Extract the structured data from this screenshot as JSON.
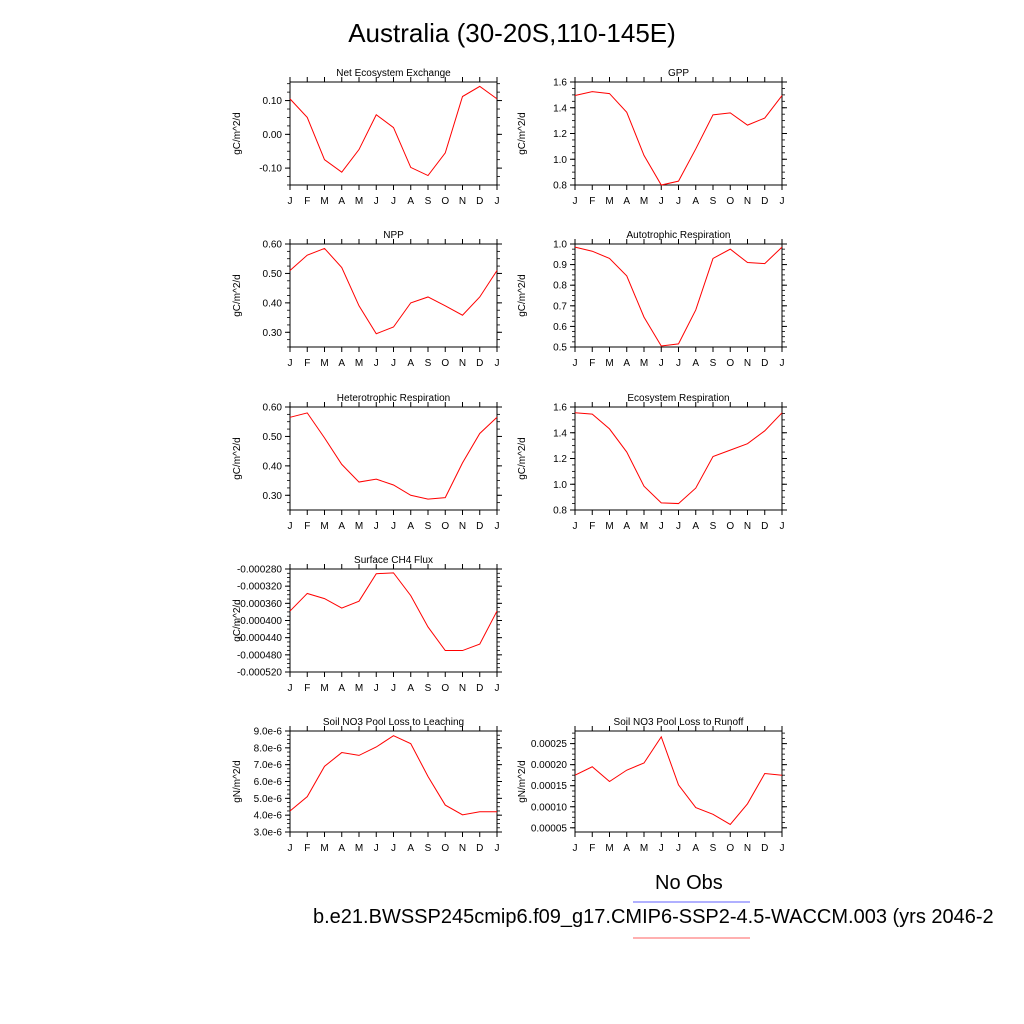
{
  "title": "Australia (30-20S,110-145E)",
  "legend": {
    "obs_label": "No Obs",
    "obs_color": "#8080ff",
    "case_label": "b.e21.BWSSP245cmip6.f09_g17.CMIP6-SSP2-4.5-WACCM.003 (yrs 2046-2",
    "case_color": "#ff8080"
  },
  "series_color": "#ff0000",
  "months": [
    "J",
    "F",
    "M",
    "A",
    "M",
    "J",
    "J",
    "A",
    "S",
    "O",
    "N",
    "D",
    "J"
  ],
  "chart_data": [
    {
      "type": "line",
      "title": "Net Ecosystem Exchange",
      "ylabel": "gC/m^2/d",
      "ylim": [
        -0.15,
        0.155
      ],
      "yticks": [
        -0.1,
        0.0,
        0.1
      ],
      "yticklabels": [
        "-0.10",
        "0.00",
        "0.10"
      ],
      "x": [
        "J",
        "F",
        "M",
        "A",
        "M",
        "J",
        "J",
        "A",
        "S",
        "O",
        "N",
        "D",
        "J"
      ],
      "values": [
        0.105,
        0.05,
        -0.075,
        -0.112,
        -0.045,
        0.058,
        0.02,
        -0.098,
        -0.122,
        -0.055,
        0.112,
        0.142,
        0.105
      ]
    },
    {
      "type": "line",
      "title": "GPP",
      "ylabel": "gC/m^2/d",
      "ylim": [
        0.8,
        1.6
      ],
      "yticks": [
        0.8,
        1.0,
        1.2,
        1.4,
        1.6
      ],
      "yticklabels": [
        "0.8",
        "1.0",
        "1.2",
        "1.4",
        "1.6"
      ],
      "x": [
        "J",
        "F",
        "M",
        "A",
        "M",
        "J",
        "J",
        "A",
        "S",
        "O",
        "N",
        "D",
        "J"
      ],
      "values": [
        1.495,
        1.525,
        1.51,
        1.365,
        1.03,
        0.8,
        0.83,
        1.08,
        1.345,
        1.36,
        1.265,
        1.32,
        1.495
      ]
    },
    {
      "type": "line",
      "title": "NPP",
      "ylabel": "gC/m^2/d",
      "ylim": [
        0.25,
        0.6
      ],
      "yticks": [
        0.3,
        0.4,
        0.5,
        0.6
      ],
      "yticklabels": [
        "0.30",
        "0.40",
        "0.50",
        "0.60"
      ],
      "x": [
        "J",
        "F",
        "M",
        "A",
        "M",
        "J",
        "J",
        "A",
        "S",
        "O",
        "N",
        "D",
        "J"
      ],
      "values": [
        0.51,
        0.562,
        0.585,
        0.52,
        0.39,
        0.295,
        0.318,
        0.4,
        0.42,
        0.39,
        0.358,
        0.42,
        0.51
      ]
    },
    {
      "type": "line",
      "title": "Autotrophic Respiration",
      "ylabel": "gC/m^2/d",
      "ylim": [
        0.5,
        1.0
      ],
      "yticks": [
        0.5,
        0.6,
        0.7,
        0.8,
        0.9,
        1.0
      ],
      "yticklabels": [
        "0.5",
        "0.6",
        "0.7",
        "0.8",
        "0.9",
        "1.0"
      ],
      "x": [
        "J",
        "F",
        "M",
        "A",
        "M",
        "J",
        "J",
        "A",
        "S",
        "O",
        "N",
        "D",
        "J"
      ],
      "values": [
        0.985,
        0.965,
        0.93,
        0.845,
        0.645,
        0.505,
        0.515,
        0.68,
        0.93,
        0.975,
        0.91,
        0.905,
        0.985
      ]
    },
    {
      "type": "line",
      "title": "Heterotrophic Respiration",
      "ylabel": "gC/m^2/d",
      "ylim": [
        0.25,
        0.6
      ],
      "yticks": [
        0.3,
        0.4,
        0.5,
        0.6
      ],
      "yticklabels": [
        "0.30",
        "0.40",
        "0.50",
        "0.60"
      ],
      "x": [
        "J",
        "F",
        "M",
        "A",
        "M",
        "J",
        "J",
        "A",
        "S",
        "O",
        "N",
        "D",
        "J"
      ],
      "values": [
        0.565,
        0.58,
        0.495,
        0.405,
        0.345,
        0.355,
        0.335,
        0.3,
        0.287,
        0.292,
        0.41,
        0.51,
        0.565
      ]
    },
    {
      "type": "line",
      "title": "Ecosystem Respiration",
      "ylabel": "gC/m^2/d",
      "ylim": [
        0.8,
        1.6
      ],
      "yticks": [
        0.8,
        1.0,
        1.2,
        1.4,
        1.6
      ],
      "yticklabels": [
        "0.8",
        "1.0",
        "1.2",
        "1.4",
        "1.6"
      ],
      "x": [
        "J",
        "F",
        "M",
        "A",
        "M",
        "J",
        "J",
        "A",
        "S",
        "O",
        "N",
        "D",
        "J"
      ],
      "values": [
        1.555,
        1.545,
        1.43,
        1.25,
        0.985,
        0.855,
        0.85,
        0.97,
        1.215,
        1.265,
        1.315,
        1.415,
        1.555
      ]
    },
    {
      "type": "line",
      "title": "Surface CH4 Flux",
      "ylabel": "gC/m^2/d",
      "ylim": [
        -0.00052,
        -0.00028
      ],
      "yticks": [
        -0.00052,
        -0.00048,
        -0.00044,
        -0.0004,
        -0.00036,
        -0.00032,
        -0.00028
      ],
      "yticklabels": [
        "-0.000520",
        "-0.000480",
        "-0.000440",
        "-0.000400",
        "-0.000360",
        "-0.000320",
        "-0.000280"
      ],
      "x": [
        "J",
        "F",
        "M",
        "A",
        "M",
        "J",
        "J",
        "A",
        "S",
        "O",
        "N",
        "D",
        "J"
      ],
      "values": [
        -0.000378,
        -0.000337,
        -0.000349,
        -0.000371,
        -0.000355,
        -0.000291,
        -0.000289,
        -0.000342,
        -0.000415,
        -0.00047,
        -0.00047,
        -0.000455,
        -0.000378
      ]
    },
    {
      "type": "line",
      "title": "Soil NO3 Pool Loss to Leaching",
      "ylabel": "gN/m^2/d",
      "ylim": [
        3e-06,
        9e-06
      ],
      "yticks": [
        3e-06,
        4e-06,
        5e-06,
        6e-06,
        7e-06,
        8e-06,
        9e-06
      ],
      "yticklabels": [
        "3.0e-6",
        "4.0e-6",
        "5.0e-6",
        "6.0e-6",
        "7.0e-6",
        "8.0e-6",
        "9.0e-6"
      ],
      "x": [
        "J",
        "F",
        "M",
        "A",
        "M",
        "J",
        "J",
        "A",
        "S",
        "O",
        "N",
        "D",
        "J"
      ],
      "values": [
        4.25e-06,
        5.1e-06,
        6.9e-06,
        7.72e-06,
        7.55e-06,
        8.05e-06,
        8.72e-06,
        8.25e-06,
        6.3e-06,
        4.6e-06,
        4.02e-06,
        4.2e-06,
        4.2e-06
      ]
    },
    {
      "type": "line",
      "title": "Soil NO3 Pool Loss to Runoff",
      "ylabel": "gN/m^2/d",
      "ylim": [
        4e-05,
        0.00028
      ],
      "yticks": [
        5e-05,
        0.0001,
        0.00015,
        0.0002,
        0.00025
      ],
      "yticklabels": [
        "0.00005",
        "0.00010",
        "0.00015",
        "0.00020",
        "0.00025"
      ],
      "x": [
        "J",
        "F",
        "M",
        "A",
        "M",
        "J",
        "J",
        "A",
        "S",
        "O",
        "N",
        "D",
        "J"
      ],
      "values": [
        0.000175,
        0.000195,
        0.00016,
        0.000187,
        0.000204,
        0.000266,
        0.000152,
        9.8e-05,
        8.2e-05,
        5.8e-05,
        0.000107,
        0.000179,
        0.000175
      ]
    }
  ]
}
